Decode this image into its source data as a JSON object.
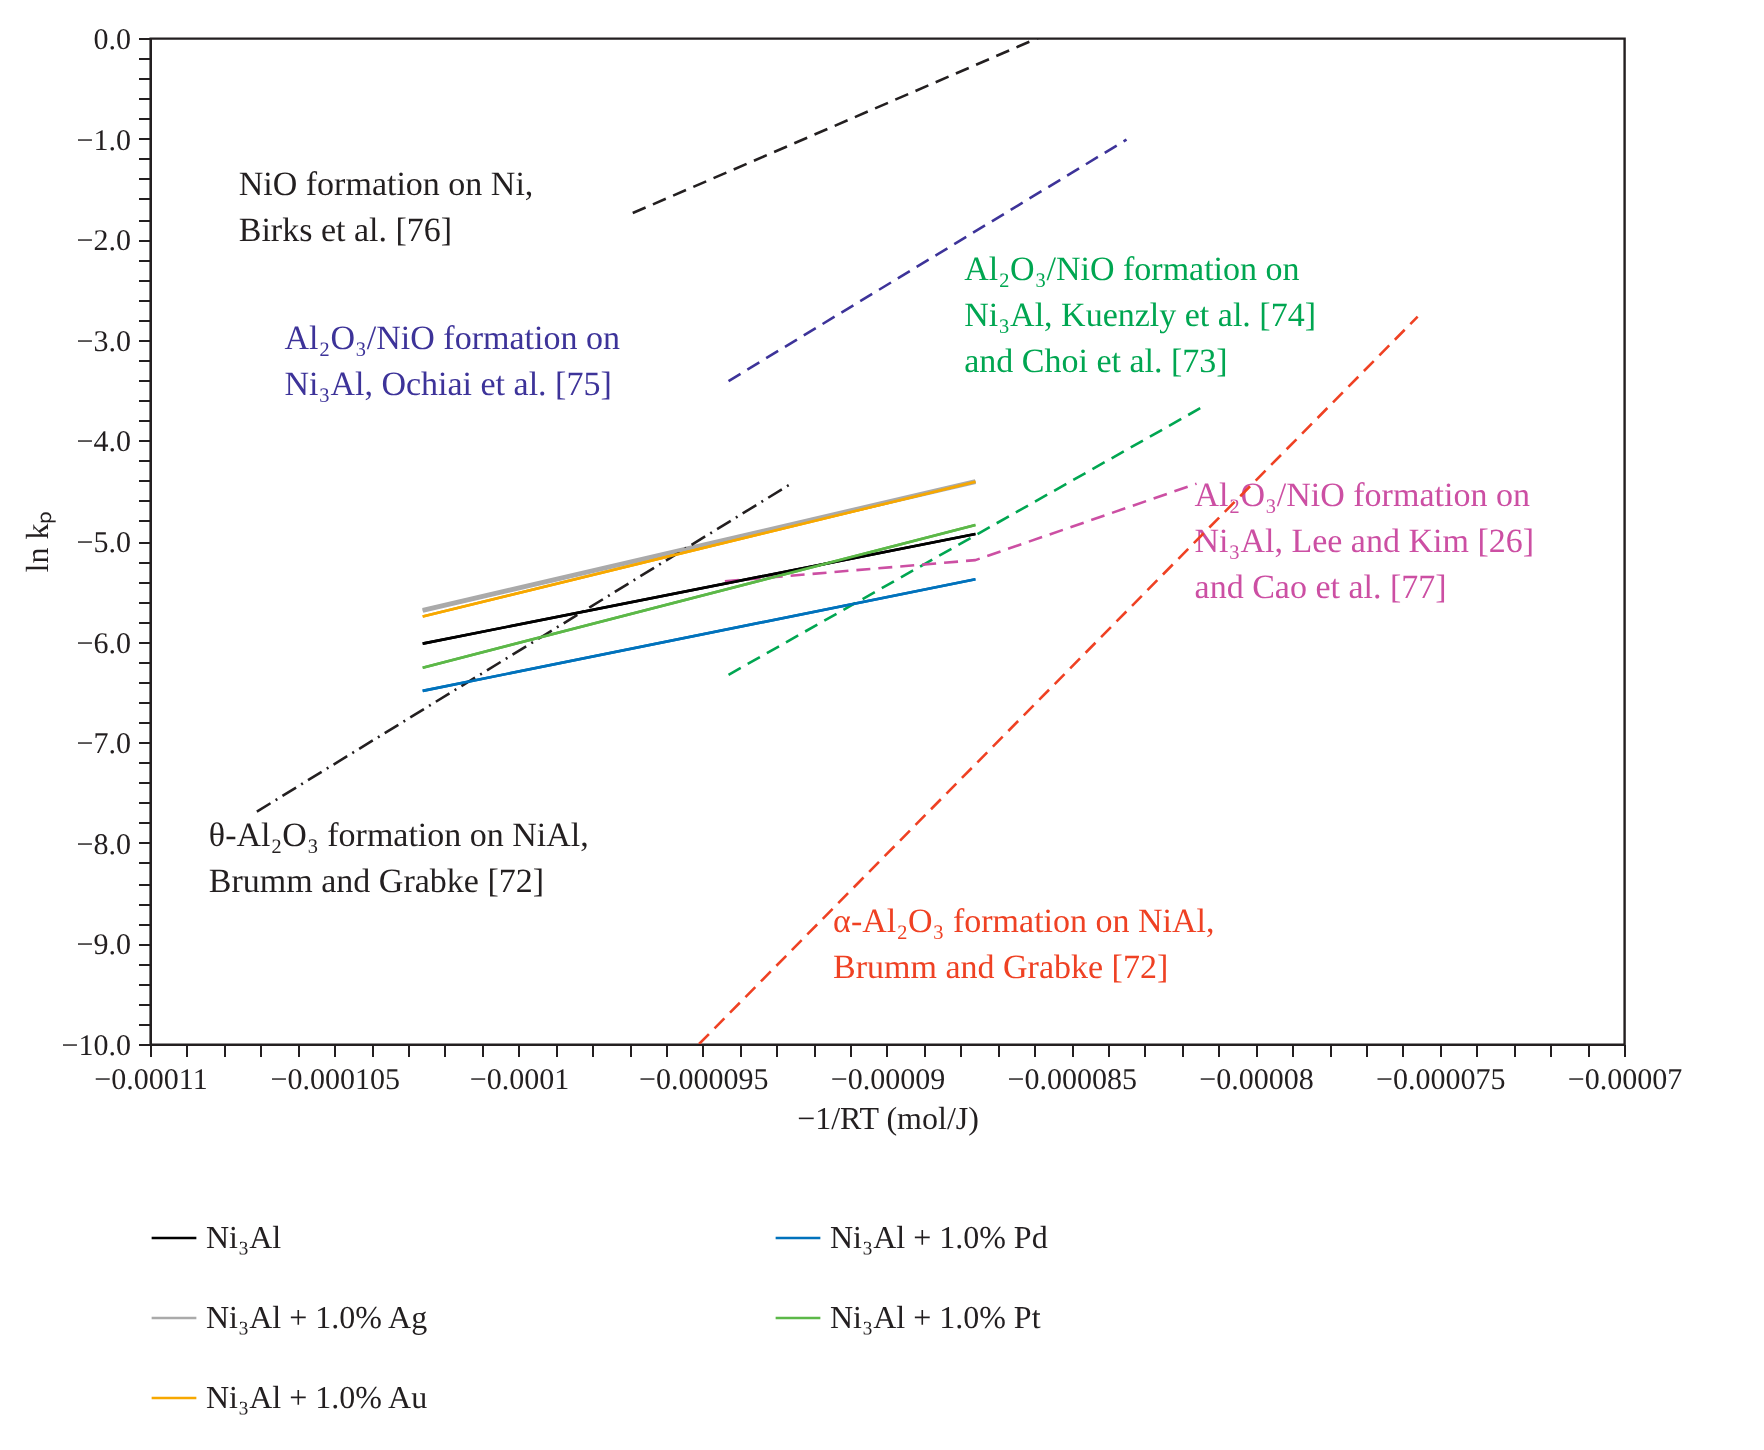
{
  "chart_data": {
    "type": "line",
    "xlabel": "−1/RT (mol/J)",
    "ylabel": "ln kₚ",
    "xlim": [
      -0.00011,
      -7e-05
    ],
    "ylim": [
      -10.0,
      0.0
    ],
    "xticks": [
      {
        "value": -0.00011,
        "label": "−0.00011"
      },
      {
        "value": -0.000109,
        "label": null
      },
      {
        "value": -0.000108,
        "label": null
      },
      {
        "value": -0.000107,
        "label": null
      },
      {
        "value": -0.000106,
        "label": null
      },
      {
        "value": -0.000105,
        "label": "−0.000105"
      },
      {
        "value": -0.000104,
        "label": null
      },
      {
        "value": -0.000103,
        "label": null
      },
      {
        "value": -0.000102,
        "label": null
      },
      {
        "value": -0.000101,
        "label": null
      },
      {
        "value": -0.0001,
        "label": "−0.0001"
      },
      {
        "value": -9.9e-05,
        "label": null
      },
      {
        "value": -9.8e-05,
        "label": null
      },
      {
        "value": -9.7e-05,
        "label": null
      },
      {
        "value": -9.6e-05,
        "label": null
      },
      {
        "value": -9.5e-05,
        "label": "−0.000095"
      },
      {
        "value": -9.4e-05,
        "label": null
      },
      {
        "value": -9.3e-05,
        "label": null
      },
      {
        "value": -9.2e-05,
        "label": null
      },
      {
        "value": -9.1e-05,
        "label": null
      },
      {
        "value": -9e-05,
        "label": "−0.00009"
      },
      {
        "value": -8.9e-05,
        "label": null
      },
      {
        "value": -8.8e-05,
        "label": null
      },
      {
        "value": -8.7e-05,
        "label": null
      },
      {
        "value": -8.6e-05,
        "label": null
      },
      {
        "value": -8.5e-05,
        "label": "−0.000085"
      },
      {
        "value": -8.4e-05,
        "label": null
      },
      {
        "value": -8.3e-05,
        "label": null
      },
      {
        "value": -8.2e-05,
        "label": null
      },
      {
        "value": -8.1e-05,
        "label": null
      },
      {
        "value": -8e-05,
        "label": "−0.00008"
      },
      {
        "value": -7.9e-05,
        "label": null
      },
      {
        "value": -7.8e-05,
        "label": null
      },
      {
        "value": -7.7e-05,
        "label": null
      },
      {
        "value": -7.6e-05,
        "label": null
      },
      {
        "value": -7.5e-05,
        "label": "−0.000075"
      },
      {
        "value": -7.4e-05,
        "label": null
      },
      {
        "value": -7.3e-05,
        "label": null
      },
      {
        "value": -7.2e-05,
        "label": null
      },
      {
        "value": -7.1e-05,
        "label": null
      },
      {
        "value": -7e-05,
        "label": "−0.00007"
      }
    ],
    "yticks": [
      {
        "value": 0.0,
        "label": "0.0"
      },
      {
        "value": -0.2,
        "label": null
      },
      {
        "value": -0.4,
        "label": null
      },
      {
        "value": -0.6,
        "label": null
      },
      {
        "value": -0.8,
        "label": null
      },
      {
        "value": -1.0,
        "label": "−1.0"
      },
      {
        "value": -1.2,
        "label": null
      },
      {
        "value": -1.4,
        "label": null
      },
      {
        "value": -1.6,
        "label": null
      },
      {
        "value": -1.8,
        "label": null
      },
      {
        "value": -2.0,
        "label": "−2.0"
      },
      {
        "value": -2.2,
        "label": null
      },
      {
        "value": -2.4,
        "label": null
      },
      {
        "value": -2.6,
        "label": null
      },
      {
        "value": -2.8,
        "label": null
      },
      {
        "value": -3.0,
        "label": "−3.0"
      },
      {
        "value": -3.2,
        "label": null
      },
      {
        "value": -3.4,
        "label": null
      },
      {
        "value": -3.6,
        "label": null
      },
      {
        "value": -3.8,
        "label": null
      },
      {
        "value": -4.0,
        "label": "−4.0"
      },
      {
        "value": -4.2,
        "label": null
      },
      {
        "value": -4.4,
        "label": null
      },
      {
        "value": -4.6,
        "label": null
      },
      {
        "value": -4.8,
        "label": null
      },
      {
        "value": -5.0,
        "label": "−5.0"
      },
      {
        "value": -5.2,
        "label": null
      },
      {
        "value": -5.4,
        "label": null
      },
      {
        "value": -5.6,
        "label": null
      },
      {
        "value": -5.8,
        "label": null
      },
      {
        "value": -6.0,
        "label": "−6.0"
      },
      {
        "value": -6.2,
        "label": null
      },
      {
        "value": -6.4,
        "label": null
      },
      {
        "value": -6.6,
        "label": null
      },
      {
        "value": -6.8,
        "label": null
      },
      {
        "value": -7.0,
        "label": "−7.0"
      },
      {
        "value": -7.2,
        "label": null
      },
      {
        "value": -7.4,
        "label": null
      },
      {
        "value": -7.6,
        "label": null
      },
      {
        "value": -7.8,
        "label": null
      },
      {
        "value": -8.0,
        "label": "−8.0"
      },
      {
        "value": -8.2,
        "label": null
      },
      {
        "value": -8.4,
        "label": null
      },
      {
        "value": -8.6,
        "label": null
      },
      {
        "value": -8.8,
        "label": null
      },
      {
        "value": -9.0,
        "label": "−9.0"
      },
      {
        "value": -9.2,
        "label": null
      },
      {
        "value": -9.4,
        "label": null
      },
      {
        "value": -9.6,
        "label": null
      },
      {
        "value": -9.8,
        "label": null
      },
      {
        "value": -10.0,
        "label": "−10.0"
      }
    ],
    "grid": false,
    "legend": "bottom",
    "marker": "none",
    "series": [
      {
        "name": "Ni₃Al",
        "color": "#000000",
        "line_style": "solid",
        "x": [
          -0.0001026,
          -8.76e-05
        ],
        "values": [
          -6.02,
          -4.93
        ]
      },
      {
        "name": "Ni₃Al + 1.0% Pd",
        "color": "#0072bc",
        "line_style": "solid",
        "x": [
          -0.0001026,
          -8.76e-05
        ],
        "values": [
          -6.49,
          -5.38
        ]
      },
      {
        "name": "Ni₃Al + 1.0% Ag",
        "color": "#aaaaaa",
        "line_style": "solid",
        "x": [
          -0.0001026,
          -8.76e-05
        ],
        "values": [
          -5.69,
          -4.41
        ]
      },
      {
        "name": "Ni₃Al + 1.0% Pt",
        "color": "#5cb848",
        "line_style": "solid",
        "x": [
          -0.0001026,
          -8.76e-05
        ],
        "values": [
          -6.26,
          -4.84
        ]
      },
      {
        "name": "Ni₃Al + 1.0% Au",
        "color": "#f7a800",
        "line_style": "solid",
        "x": [
          -0.0001026,
          -8.76e-05
        ],
        "values": [
          -5.75,
          -4.41
        ]
      },
      {
        "name": "NiO formation on Ni,\nBirks et al. [76]",
        "color": "#231f20",
        "line_style": "dashed",
        "x": [
          -9.69e-05,
          -8.59e-05
        ],
        "values": [
          -1.74,
          0.0
        ]
      },
      {
        "name": "Al₂O₃/NiO formation on\nNi₃Al, Ochiai et al. [75]",
        "color": "#3d3399",
        "line_style": "dashed",
        "x": [
          -9.43e-05,
          -8.35e-05
        ],
        "values": [
          -3.41,
          -1.01
        ]
      },
      {
        "name": "Al₂O₃/NiO formation on\nNi₃Al, Kuenzly et al. [74]\nand Choi et al. [73]",
        "color": "#00a651",
        "line_style": "dashed",
        "x": [
          -9.43e-05,
          -8.15e-05
        ],
        "values": [
          -6.33,
          -3.68
        ]
      },
      {
        "name": "Al₂O₃/NiO formation on\nNi₃Al, Lee and Kim [26]\nand Cao et al. [77]",
        "color": "#cc4fa3",
        "line_style": "dashed",
        "x": [
          -9.44e-05,
          -8.76e-05,
          -8.16e-05
        ],
        "values": [
          -5.4,
          -5.19,
          -4.43
        ]
      },
      {
        "name": "θ-Al₂O₃ formation on NiAl,\nBrumm and Grabke [72]",
        "color": "#231f20",
        "line_style": "dashdot",
        "x": [
          -0.0001071,
          -9.26e-05
        ],
        "values": [
          -7.69,
          -4.43
        ]
      },
      {
        "name": "α-Al₂O₃ formation on NiAl,\nBrumm and Grabke [72]",
        "color": "#ef4123",
        "line_style": "dashed",
        "x": [
          -9.51e-05,
          -7.56e-05
        ],
        "values": [
          -10.0,
          -2.77
        ]
      }
    ]
  }
}
